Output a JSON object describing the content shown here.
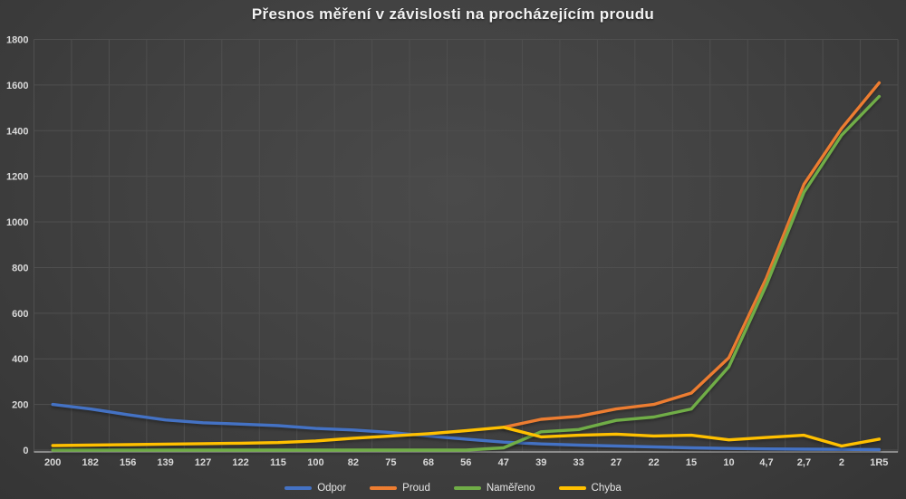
{
  "title": "Přesnos měření v závislosti na procházejícím proudu",
  "chart_data": {
    "type": "line",
    "title": "Přesnos měření v závislosti na procházejícím proudu",
    "categories": [
      "200",
      "182",
      "156",
      "139",
      "127",
      "122",
      "115",
      "100",
      "82",
      "75",
      "68",
      "56",
      "47",
      "39",
      "33",
      "27",
      "22",
      "15",
      "10",
      "4,7",
      "2,7",
      "2",
      "1R5"
    ],
    "series": [
      {
        "name": "Odpor",
        "color": "#4472C4",
        "values": [
          200,
          180,
          155,
          132,
          120,
          114,
          107,
          95,
          88,
          77,
          62,
          48,
          35,
          27,
          22,
          18,
          14,
          10,
          7,
          5,
          4,
          3,
          2
        ]
      },
      {
        "name": "Proud",
        "color": "#ED7D31",
        "values": [
          null,
          null,
          null,
          null,
          null,
          null,
          null,
          null,
          null,
          null,
          null,
          null,
          100,
          135,
          148,
          180,
          200,
          250,
          405,
          755,
          1165,
          1410,
          1610
        ]
      },
      {
        "name": "Naměřeno",
        "color": "#70AD47",
        "values": [
          0,
          0,
          0,
          0,
          0,
          0,
          0,
          0,
          0,
          0,
          0,
          0,
          10,
          80,
          90,
          130,
          145,
          180,
          365,
          725,
          1130,
          1380,
          1550
        ]
      },
      {
        "name": "Chyba",
        "color": "#FFC000",
        "values": [
          20,
          22,
          24,
          26,
          28,
          30,
          33,
          40,
          52,
          62,
          72,
          85,
          100,
          58,
          65,
          70,
          62,
          65,
          45,
          55,
          65,
          18,
          48
        ]
      }
    ],
    "ylim": [
      0,
      1800
    ],
    "yticks": [
      0,
      200,
      400,
      600,
      800,
      1000,
      1200,
      1400,
      1600,
      1800
    ],
    "grid": true,
    "legend_position": "bottom",
    "background": "#424242",
    "gridline_color": "#4f4f4f",
    "axis_text_color": "#d9d9d9"
  }
}
